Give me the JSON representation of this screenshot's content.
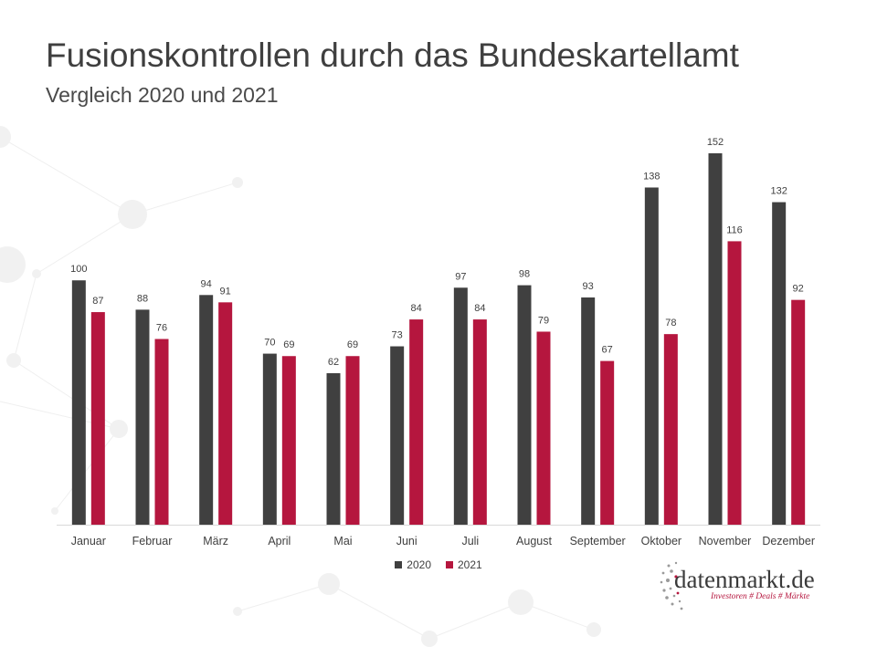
{
  "header": {
    "title": "Fusionskontrollen durch das Bundeskartellamt",
    "subtitle": "Vergleich 2020 und 2021"
  },
  "colors": {
    "series_2020": "#404040",
    "series_2021": "#b5163e",
    "axis": "#d9d9d9",
    "label": "#404040"
  },
  "chart_data": {
    "type": "bar",
    "title": "Fusionskontrollen durch das Bundeskartellamt",
    "subtitle": "Vergleich 2020 und 2021",
    "xlabel": "",
    "ylabel": "",
    "ylim": [
      0,
      152
    ],
    "grid": false,
    "legend_position": "bottom",
    "categories": [
      "Januar",
      "Februar",
      "März",
      "April",
      "Mai",
      "Juni",
      "Juli",
      "August",
      "September",
      "Oktober",
      "November",
      "Dezember"
    ],
    "series": [
      {
        "name": "2020",
        "values": [
          100,
          88,
          94,
          70,
          62,
          73,
          97,
          98,
          93,
          138,
          152,
          132
        ]
      },
      {
        "name": "2021",
        "values": [
          87,
          76,
          91,
          69,
          69,
          84,
          84,
          79,
          67,
          78,
          116,
          92
        ]
      }
    ]
  },
  "legend": {
    "items": [
      {
        "label": "2020",
        "icon": "square-swatch-icon"
      },
      {
        "label": "2021",
        "icon": "square-swatch-icon"
      }
    ]
  },
  "brand": {
    "name": "datenmarkt.de",
    "tagline": "Investoren # Deals # Märkte",
    "icon": "dot-cluster-logo-icon"
  }
}
